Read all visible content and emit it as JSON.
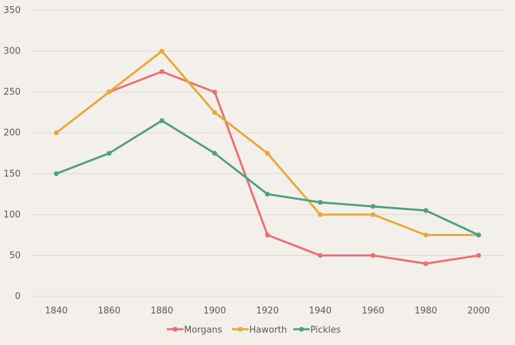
{
  "chart_data": {
    "type": "line",
    "title": "",
    "xlabel": "",
    "ylabel": "",
    "x": [
      1840,
      1860,
      1880,
      1900,
      1920,
      1940,
      1960,
      1980,
      2000
    ],
    "ylim": [
      0,
      350
    ],
    "yticks": [
      0,
      50,
      100,
      150,
      200,
      250,
      300,
      350
    ],
    "grid": true,
    "legend_position": "bottom",
    "series": [
      {
        "name": "Morgans",
        "color": "#ee6e6e",
        "values": [
          null,
          250,
          275,
          250,
          75,
          50,
          50,
          40,
          50
        ]
      },
      {
        "name": "Haworth",
        "color": "#e9a832",
        "values": [
          200,
          250,
          300,
          225,
          175,
          100,
          100,
          75,
          75
        ]
      },
      {
        "name": "Pickles",
        "color": "#4e9e86",
        "values": [
          150,
          175,
          215,
          175,
          125,
          115,
          110,
          105,
          75
        ]
      }
    ]
  }
}
